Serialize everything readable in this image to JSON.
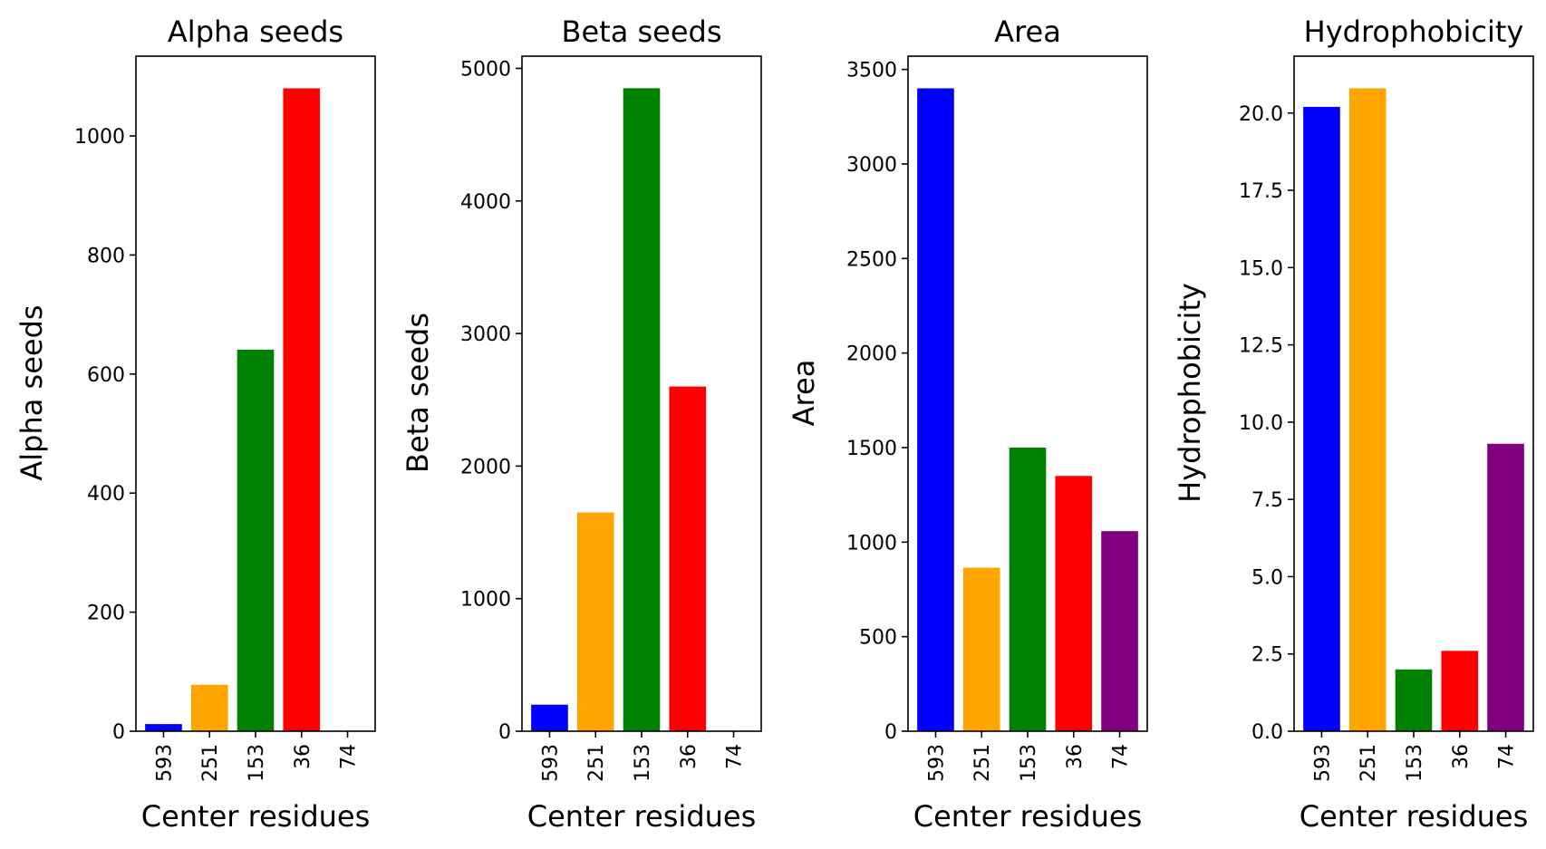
{
  "chart_data": [
    {
      "type": "bar",
      "title": "Alpha seeds",
      "xlabel": "Center residues",
      "ylabel": "Alpha seeds",
      "categories": [
        "593",
        "251",
        "153",
        "36",
        "74"
      ],
      "values": [
        12,
        78,
        641,
        1080,
        0
      ],
      "colors": [
        "#0000ff",
        "#ffa500",
        "#008000",
        "#ff0000",
        "#800080"
      ],
      "ylim": [
        0,
        1134
      ],
      "yticks": [
        0,
        200,
        400,
        600,
        800,
        1000
      ],
      "ytick_labels": [
        "0",
        "200",
        "400",
        "600",
        "800",
        "1000"
      ],
      "grid": false
    },
    {
      "type": "bar",
      "title": "Beta seeds",
      "xlabel": "Center residues",
      "ylabel": "Beta seeds",
      "categories": [
        "593",
        "251",
        "153",
        "36",
        "74"
      ],
      "values": [
        200,
        1650,
        4850,
        2600,
        0
      ],
      "colors": [
        "#0000ff",
        "#ffa500",
        "#008000",
        "#ff0000",
        "#800080"
      ],
      "ylim": [
        0,
        5092
      ],
      "yticks": [
        0,
        1000,
        2000,
        3000,
        4000,
        5000
      ],
      "ytick_labels": [
        "0",
        "1000",
        "2000",
        "3000",
        "4000",
        "5000"
      ],
      "grid": false
    },
    {
      "type": "bar",
      "title": "Area",
      "xlabel": "Center residues",
      "ylabel": "Area",
      "categories": [
        "593",
        "251",
        "153",
        "36",
        "74"
      ],
      "values": [
        3400,
        865,
        1500,
        1350,
        1058
      ],
      "colors": [
        "#0000ff",
        "#ffa500",
        "#008000",
        "#ff0000",
        "#800080"
      ],
      "ylim": [
        0,
        3570
      ],
      "yticks": [
        0,
        500,
        1000,
        1500,
        2000,
        2500,
        3000,
        3500
      ],
      "ytick_labels": [
        "0",
        "500",
        "1000",
        "1500",
        "2000",
        "2500",
        "3000",
        "3500"
      ],
      "grid": false
    },
    {
      "type": "bar",
      "title": "Hydrophobicity",
      "xlabel": "Center residues",
      "ylabel": "Hydrophobicity",
      "categories": [
        "593",
        "251",
        "153",
        "36",
        "74"
      ],
      "values": [
        20.2,
        20.8,
        2.0,
        2.6,
        9.3
      ],
      "colors": [
        "#0000ff",
        "#ffa500",
        "#008000",
        "#ff0000",
        "#800080"
      ],
      "ylim": [
        0,
        21.84
      ],
      "yticks": [
        0,
        2.5,
        5,
        7.5,
        10,
        12.5,
        15,
        17.5,
        20
      ],
      "ytick_labels": [
        "0.0",
        "2.5",
        "5.0",
        "7.5",
        "10.0",
        "12.5",
        "15.0",
        "17.5",
        "20.0"
      ],
      "grid": false
    }
  ]
}
